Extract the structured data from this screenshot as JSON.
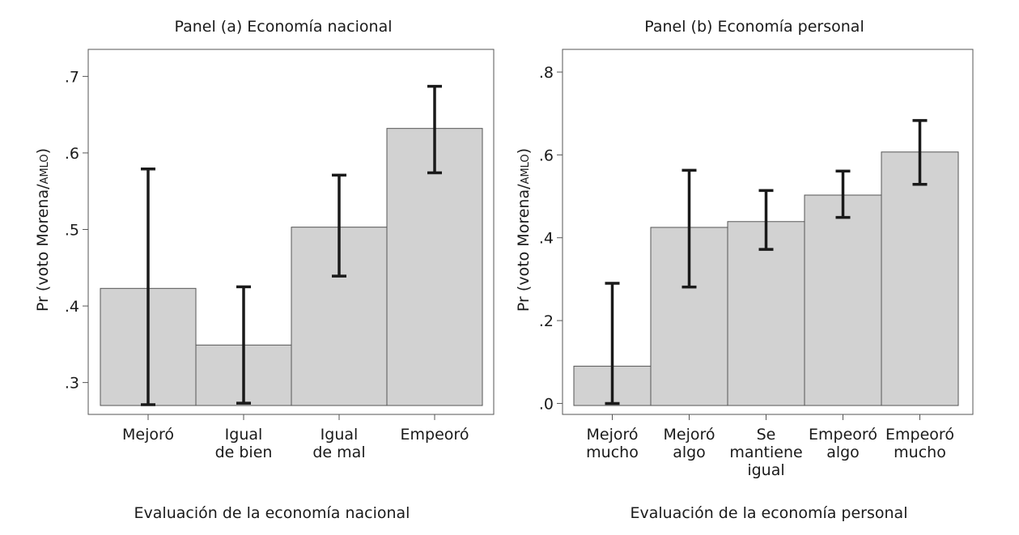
{
  "chart_data": [
    {
      "type": "bar",
      "title": "Panel (a) Economía nacional",
      "xlabel": "Evaluación de la economía nacional",
      "ylabel_main": "Pr (voto Morena/",
      "ylabel_small": "AMLO",
      "ylabel_end": ")",
      "ylim": [
        0.27,
        0.73
      ],
      "yticks": [
        0.3,
        0.4,
        0.5,
        0.6,
        0.7
      ],
      "ytick_labels": [
        ".3",
        ".4",
        ".5",
        ".6",
        ".7"
      ],
      "categories": [
        [
          "Mejoró"
        ],
        [
          "Igual",
          "de bien"
        ],
        [
          "Igual",
          "de mal"
        ],
        [
          "Empeoró"
        ]
      ],
      "values": [
        0.423,
        0.349,
        0.503,
        0.632
      ],
      "ci_low": [
        0.271,
        0.273,
        0.439,
        0.574
      ],
      "ci_high": [
        0.579,
        0.425,
        0.571,
        0.687
      ]
    },
    {
      "type": "bar",
      "title": "Panel (b) Economía personal",
      "xlabel": "Evaluación de la economía personal",
      "ylabel_main": "Pr (voto Morena/",
      "ylabel_small": "AMLO",
      "ylabel_end": ")",
      "ylim": [
        -0.005,
        0.845
      ],
      "yticks": [
        0.0,
        0.2,
        0.4,
        0.6,
        0.8
      ],
      "ytick_labels": [
        ".0",
        ".2",
        ".4",
        ".6",
        ".8"
      ],
      "categories": [
        [
          "Mejoró",
          "mucho"
        ],
        [
          "Mejoró",
          "algo"
        ],
        [
          "Se",
          "mantiene",
          "igual"
        ],
        [
          "Empeoró",
          "algo"
        ],
        [
          "Empeoró",
          "mucho"
        ]
      ],
      "values": [
        0.09,
        0.425,
        0.439,
        0.503,
        0.607
      ],
      "ci_low": [
        0.0,
        0.281,
        0.372,
        0.449,
        0.529
      ],
      "ci_high": [
        0.29,
        0.563,
        0.514,
        0.561,
        0.683
      ]
    }
  ],
  "colors": {
    "bar_fill": "#d2d2d2",
    "bar_stroke": "#555555",
    "errorbar": "#1a1a1a",
    "frame": "#555555"
  }
}
